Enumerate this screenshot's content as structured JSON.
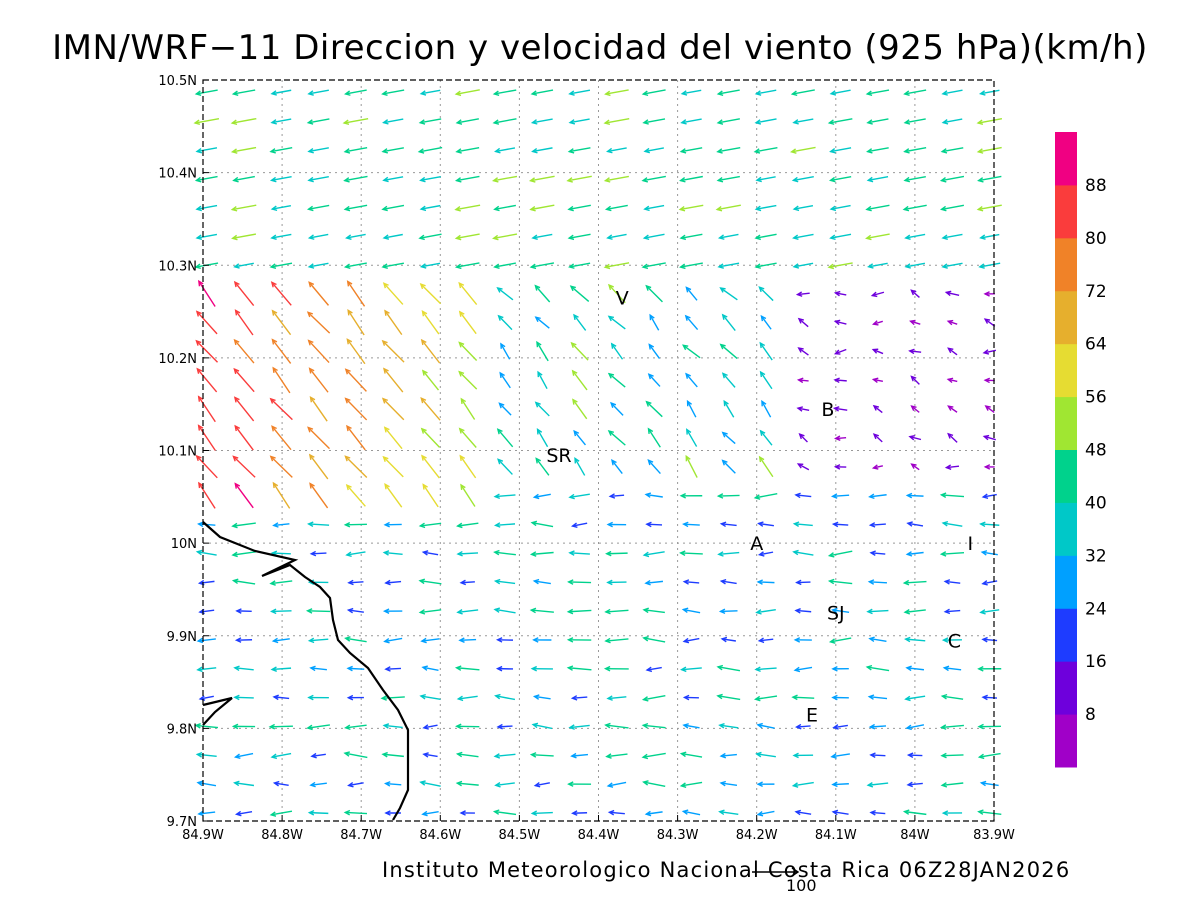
{
  "title": "IMN/WRF−11 Direccion y velocidad del viento (925 hPa)(km/h)",
  "footer": "Instituto Meteorologico Nacional Costa Rica 06Z28JAN2026",
  "reference_vector": {
    "value": 100,
    "label": "100"
  },
  "map": {
    "lon_range": [
      -84.9,
      -83.9
    ],
    "lat_range": [
      9.7,
      10.5
    ],
    "x_tick_labels": [
      "84.9W",
      "84.8W",
      "84.7W",
      "84.6W",
      "84.5W",
      "84.4W",
      "84.3W",
      "84.2W",
      "84.1W",
      "84W",
      "83.9W"
    ],
    "y_tick_labels": [
      "9.7N",
      "9.8N",
      "9.9N",
      "10N",
      "10.1N",
      "10.2N",
      "10.3N",
      "10.4N",
      "10.5N"
    ],
    "grid": true,
    "place_labels": [
      {
        "text": "V",
        "lon": -84.37,
        "lat": 10.265
      },
      {
        "text": "B",
        "lon": -84.11,
        "lat": 10.145
      },
      {
        "text": "SR",
        "lon": -84.45,
        "lat": 10.095
      },
      {
        "text": "A",
        "lon": -84.2,
        "lat": 10.0
      },
      {
        "text": "I",
        "lon": -83.93,
        "lat": 10.0
      },
      {
        "text": "SJ",
        "lon": -84.1,
        "lat": 9.925
      },
      {
        "text": "C",
        "lon": -83.95,
        "lat": 9.895
      },
      {
        "text": "E",
        "lon": -84.13,
        "lat": 9.815
      }
    ]
  },
  "colorbar": {
    "labels": [
      "8",
      "16",
      "24",
      "32",
      "40",
      "48",
      "56",
      "64",
      "72",
      "80",
      "88"
    ],
    "colors": [
      "#a000c8",
      "#6e00dc",
      "#1e3cff",
      "#00a0ff",
      "#00c8c8",
      "#00d28c",
      "#a0e632",
      "#e6dc32",
      "#e6af2d",
      "#f08228",
      "#fa3c3c",
      "#f00082"
    ]
  },
  "wind_speed_units": "km/h"
}
